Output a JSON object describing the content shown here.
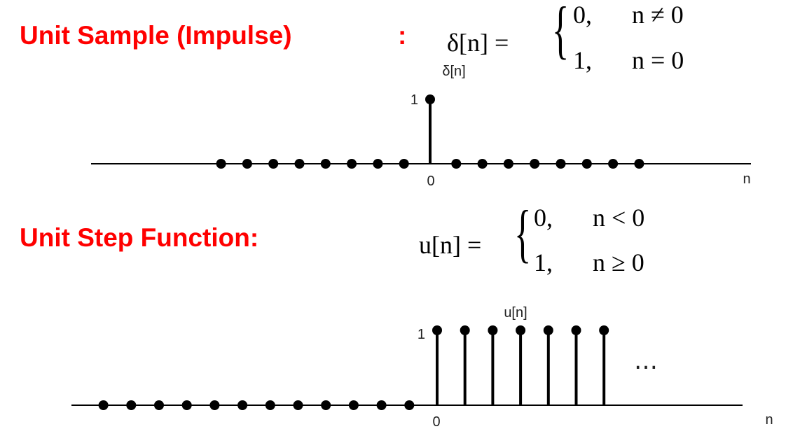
{
  "impulse": {
    "heading": "Unit Sample (Impulse)",
    "heading_colon": ":",
    "definition": {
      "lhs": "δ[n] =",
      "cases": [
        {
          "value": "0,",
          "condition": "n ≠ 0"
        },
        {
          "value": "1,",
          "condition": "n = 0"
        }
      ]
    },
    "plot": {
      "signal_label": "δ[n]",
      "peak_label": "1",
      "origin_label": "0",
      "axis_label": "n",
      "samples": [
        {
          "n": -8,
          "v": 0
        },
        {
          "n": -7,
          "v": 0
        },
        {
          "n": -6,
          "v": 0
        },
        {
          "n": -5,
          "v": 0
        },
        {
          "n": -4,
          "v": 0
        },
        {
          "n": -3,
          "v": 0
        },
        {
          "n": -2,
          "v": 0
        },
        {
          "n": -1,
          "v": 0
        },
        {
          "n": 0,
          "v": 1
        },
        {
          "n": 1,
          "v": 0
        },
        {
          "n": 2,
          "v": 0
        },
        {
          "n": 3,
          "v": 0
        },
        {
          "n": 4,
          "v": 0
        },
        {
          "n": 5,
          "v": 0
        },
        {
          "n": 6,
          "v": 0
        },
        {
          "n": 7,
          "v": 0
        },
        {
          "n": 8,
          "v": 0
        }
      ]
    }
  },
  "step": {
    "heading": "Unit Step Function:",
    "definition": {
      "lhs": "u[n] =",
      "cases": [
        {
          "value": "0,",
          "condition": "n < 0"
        },
        {
          "value": "1,",
          "condition": "n ≥ 0"
        }
      ]
    },
    "plot": {
      "signal_label": "u[n]",
      "peak_label": "1",
      "origin_label": "0",
      "axis_label": "n",
      "continuation": "…",
      "samples": [
        {
          "n": -12,
          "v": 0
        },
        {
          "n": -11,
          "v": 0
        },
        {
          "n": -10,
          "v": 0
        },
        {
          "n": -9,
          "v": 0
        },
        {
          "n": -8,
          "v": 0
        },
        {
          "n": -7,
          "v": 0
        },
        {
          "n": -6,
          "v": 0
        },
        {
          "n": -5,
          "v": 0
        },
        {
          "n": -4,
          "v": 0
        },
        {
          "n": -3,
          "v": 0
        },
        {
          "n": -2,
          "v": 0
        },
        {
          "n": -1,
          "v": 0
        },
        {
          "n": 0,
          "v": 1
        },
        {
          "n": 1,
          "v": 1
        },
        {
          "n": 2,
          "v": 1
        },
        {
          "n": 3,
          "v": 1
        },
        {
          "n": 4,
          "v": 1
        },
        {
          "n": 5,
          "v": 1
        },
        {
          "n": 6,
          "v": 1
        }
      ]
    }
  }
}
